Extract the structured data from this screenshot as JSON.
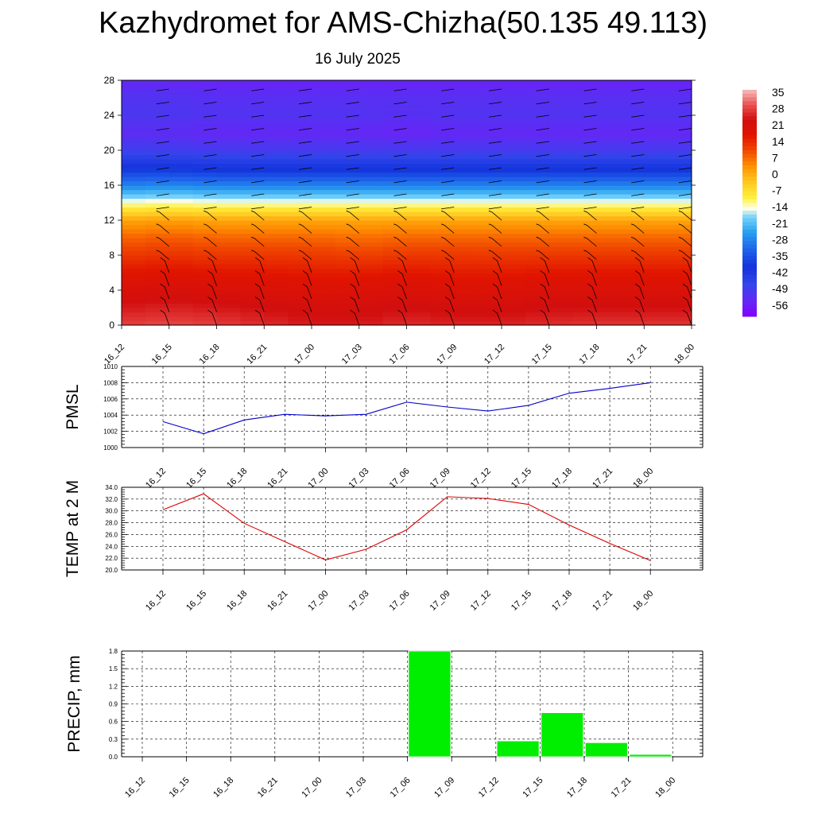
{
  "header": {
    "title": "Kazhydromet for AMS-Chizha(50.135 49.113)",
    "subtitle": "16 July 2025"
  },
  "chart_data": [
    {
      "type": "heatmap",
      "title": "",
      "xlabel": "",
      "ylabel": "",
      "x": [
        "16_12",
        "16_15",
        "16_18",
        "16_21",
        "17_00",
        "17_03",
        "17_06",
        "17_09",
        "17_12",
        "17_15",
        "17_18",
        "17_21",
        "18_00"
      ],
      "y_ticks": [
        0,
        4,
        8,
        12,
        16,
        20,
        24,
        28
      ],
      "ylim": [
        0,
        28
      ],
      "levels": [
        0,
        2,
        4,
        6,
        8,
        10,
        12,
        14,
        16,
        18,
        20,
        22,
        24,
        26,
        28
      ],
      "values": [
        [
          33,
          34,
          33,
          31,
          29,
          29,
          31,
          30,
          30,
          31,
          32,
          32,
          32
        ],
        [
          29,
          30,
          29,
          28,
          27,
          27,
          28,
          27,
          27,
          28,
          28,
          28,
          28
        ],
        [
          25,
          26,
          25,
          25,
          24,
          24,
          25,
          24,
          24,
          25,
          25,
          25,
          25
        ],
        [
          21,
          22,
          21,
          21,
          20,
          20,
          21,
          20,
          20,
          21,
          21,
          21,
          21
        ],
        [
          16,
          17,
          16,
          16,
          16,
          15,
          16,
          16,
          16,
          16,
          16,
          16,
          16
        ],
        [
          11,
          12,
          11,
          11,
          11,
          10,
          11,
          11,
          11,
          11,
          11,
          11,
          11
        ],
        [
          4,
          5,
          4,
          4,
          4,
          4,
          4,
          4,
          4,
          4,
          4,
          4,
          4
        ],
        [
          -12,
          -11,
          -12,
          -12,
          -12,
          -12,
          -12,
          -12,
          -12,
          -12,
          -12,
          -12,
          -12
        ],
        [
          -28,
          -27,
          -28,
          -28,
          -28,
          -28,
          -28,
          -28,
          -28,
          -28,
          -28,
          -28,
          -28
        ],
        [
          -40,
          -40,
          -41,
          -41,
          -41,
          -41,
          -41,
          -41,
          -41,
          -41,
          -41,
          -41,
          -41
        ],
        [
          -50,
          -50,
          -51,
          -51,
          -51,
          -51,
          -51,
          -51,
          -51,
          -51,
          -51,
          -51,
          -51
        ],
        [
          -55,
          -55,
          -56,
          -56,
          -56,
          -56,
          -57,
          -56,
          -56,
          -56,
          -56,
          -56,
          -56
        ],
        [
          -52,
          -52,
          -53,
          -53,
          -53,
          -53,
          -54,
          -53,
          -53,
          -53,
          -53,
          -53,
          -53
        ],
        [
          -53,
          -53,
          -54,
          -54,
          -54,
          -54,
          -54,
          -54,
          -54,
          -54,
          -54,
          -54,
          -54
        ],
        [
          -56,
          -56,
          -57,
          -57,
          -57,
          -57,
          -57,
          -57,
          -57,
          -57,
          -57,
          -57,
          -57
        ]
      ],
      "colorbar": {
        "labels": [
          "35",
          "28",
          "21",
          "14",
          "7",
          "0",
          "-7",
          "-14",
          "-21",
          "-28",
          "-35",
          "-42",
          "-49",
          "-56"
        ],
        "range": [
          -63,
          42
        ]
      },
      "wind_barbs": true
    },
    {
      "type": "line",
      "ylabel": "PMSL",
      "x": [
        "16_12",
        "16_15",
        "16_18",
        "16_21",
        "17_00",
        "17_03",
        "17_06",
        "17_09",
        "17_12",
        "17_15",
        "17_18",
        "17_21",
        "18_00"
      ],
      "ylim": [
        1000,
        1010
      ],
      "y_ticks": [
        "1000",
        "1002",
        "1004",
        "1006",
        "1008",
        "1010"
      ],
      "series": [
        {
          "values": [
            1003.2,
            1001.7,
            1003.4,
            1004.1,
            1003.9,
            1004.1,
            1005.6,
            1005.0,
            1004.5,
            1005.2,
            1006.7,
            1007.3,
            1008.0
          ],
          "color": "#0000cc"
        }
      ],
      "grid": true
    },
    {
      "type": "line",
      "ylabel": "TEMP at 2 M",
      "x": [
        "16_12",
        "16_15",
        "16_18",
        "16_21",
        "17_00",
        "17_03",
        "17_06",
        "17_09",
        "17_12",
        "17_15",
        "17_18",
        "17_21",
        "18_00"
      ],
      "ylim": [
        20,
        34
      ],
      "y_ticks": [
        "20.0",
        "22.0",
        "24.0",
        "26.0",
        "28.0",
        "30.0",
        "32.0",
        "34.0"
      ],
      "series": [
        {
          "values": [
            30.2,
            32.9,
            27.9,
            24.8,
            21.7,
            23.5,
            26.8,
            32.4,
            32.1,
            31.1,
            27.6,
            24.5,
            21.6
          ],
          "color": "#dd0000"
        }
      ],
      "grid": true
    },
    {
      "type": "bar",
      "ylabel": "PRECIP, mm",
      "categories": [
        "16_12",
        "16_15",
        "16_18",
        "16_21",
        "17_00",
        "17_03",
        "17_06",
        "17_09",
        "17_12",
        "17_15",
        "17_18",
        "17_21",
        "18_00"
      ],
      "values": [
        0,
        0,
        0,
        0,
        0,
        0,
        1.8,
        0,
        0.27,
        0.75,
        0.24,
        0.04,
        0
      ],
      "ylim": [
        0,
        1.8
      ],
      "y_ticks": [
        "0.0",
        "0.3",
        "0.6",
        "0.9",
        "1.2",
        "1.5",
        "1.8"
      ],
      "color": "#00ee00",
      "grid": true
    }
  ]
}
